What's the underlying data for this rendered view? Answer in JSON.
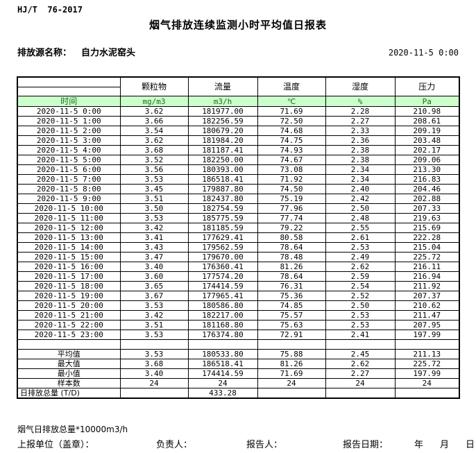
{
  "doc_code": "HJ/T  76-2017",
  "title": "烟气排放连续监测小时平均值日报表",
  "source": {
    "label": "排放源名称：",
    "value": "自力水泥窑头"
  },
  "datetime": "2020-11-5 0:00",
  "colors": {
    "header_green": "#ccffcc",
    "header_green_text": "#1a6b1a",
    "border": "#000000"
  },
  "table": {
    "time_header": "时间",
    "measure_headers": [
      "颗粒物",
      "流量",
      "温度",
      "湿度",
      "压力"
    ],
    "units": [
      "mg/m3",
      "m3/h",
      "℃",
      "%",
      "Pa"
    ],
    "rows": [
      [
        "2020-11-5 0:00",
        "3.62",
        "181977.00",
        "71.69",
        "2.28",
        "210.98"
      ],
      [
        "2020-11-5 1:00",
        "3.66",
        "182256.59",
        "72.50",
        "2.27",
        "208.61"
      ],
      [
        "2020-11-5 2:00",
        "3.54",
        "180679.20",
        "74.68",
        "2.33",
        "209.19"
      ],
      [
        "2020-11-5 3:00",
        "3.62",
        "181984.20",
        "74.75",
        "2.36",
        "203.48"
      ],
      [
        "2020-11-5 4:00",
        "3.68",
        "181187.41",
        "74.93",
        "2.38",
        "202.17"
      ],
      [
        "2020-11-5 5:00",
        "3.52",
        "182250.00",
        "74.67",
        "2.38",
        "209.06"
      ],
      [
        "2020-11-5 6:00",
        "3.56",
        "180393.00",
        "73.08",
        "2.34",
        "213.30"
      ],
      [
        "2020-11-5 7:00",
        "3.53",
        "186518.41",
        "71.92",
        "2.34",
        "216.83"
      ],
      [
        "2020-11-5 8:00",
        "3.45",
        "179887.80",
        "74.50",
        "2.40",
        "204.46"
      ],
      [
        "2020-11-5 9:00",
        "3.51",
        "182437.80",
        "75.19",
        "2.42",
        "202.88"
      ],
      [
        "2020-11-5 10:00",
        "3.50",
        "182754.59",
        "77.96",
        "2.50",
        "207.33"
      ],
      [
        "2020-11-5 11:00",
        "3.53",
        "185775.59",
        "77.74",
        "2.48",
        "219.63"
      ],
      [
        "2020-11-5 12:00",
        "3.42",
        "181185.59",
        "79.22",
        "2.55",
        "215.69"
      ],
      [
        "2020-11-5 13:00",
        "3.41",
        "177629.41",
        "80.58",
        "2.61",
        "222.28"
      ],
      [
        "2020-11-5 14:00",
        "3.43",
        "179562.59",
        "78.64",
        "2.53",
        "215.04"
      ],
      [
        "2020-11-5 15:00",
        "3.47",
        "179670.00",
        "78.48",
        "2.49",
        "225.72"
      ],
      [
        "2020-11-5 16:00",
        "3.40",
        "176360.41",
        "81.26",
        "2.62",
        "216.11"
      ],
      [
        "2020-11-5 17:00",
        "3.60",
        "177574.20",
        "78.64",
        "2.59",
        "216.94"
      ],
      [
        "2020-11-5 18:00",
        "3.65",
        "174414.59",
        "76.31",
        "2.54",
        "211.92"
      ],
      [
        "2020-11-5 19:00",
        "3.67",
        "177965.41",
        "75.36",
        "2.52",
        "207.37"
      ],
      [
        "2020-11-5 20:00",
        "3.53",
        "180586.80",
        "74.85",
        "2.50",
        "210.62"
      ],
      [
        "2020-11-5 21:00",
        "3.42",
        "182217.00",
        "75.57",
        "2.53",
        "211.47"
      ],
      [
        "2020-11-5 22:00",
        "3.51",
        "181168.80",
        "75.63",
        "2.53",
        "207.95"
      ],
      [
        "2020-11-5 23:00",
        "3.53",
        "176374.80",
        "72.91",
        "2.41",
        "197.99"
      ]
    ],
    "summary_rows": [
      [
        "平均值",
        "3.53",
        "180533.80",
        "75.88",
        "2.45",
        "211.13"
      ],
      [
        "最大值",
        "3.68",
        "186518.41",
        "81.26",
        "2.62",
        "225.72"
      ],
      [
        "最小值",
        "3.40",
        "174414.59",
        "71.69",
        "2.27",
        "197.99"
      ],
      [
        "样本数",
        "24",
        "24",
        "24",
        "24",
        "24"
      ],
      [
        "日排放总量 (T/D)",
        "",
        "433.28",
        "",
        "",
        ""
      ]
    ]
  },
  "footer": {
    "note": "烟气日排放总量*10000m3/h",
    "report_unit": "上报单位（盖章）：",
    "responsible": "负责人：",
    "reporter": "报告人：",
    "report_date": "报告日期：",
    "year": "年",
    "month": "月",
    "day": "日"
  }
}
